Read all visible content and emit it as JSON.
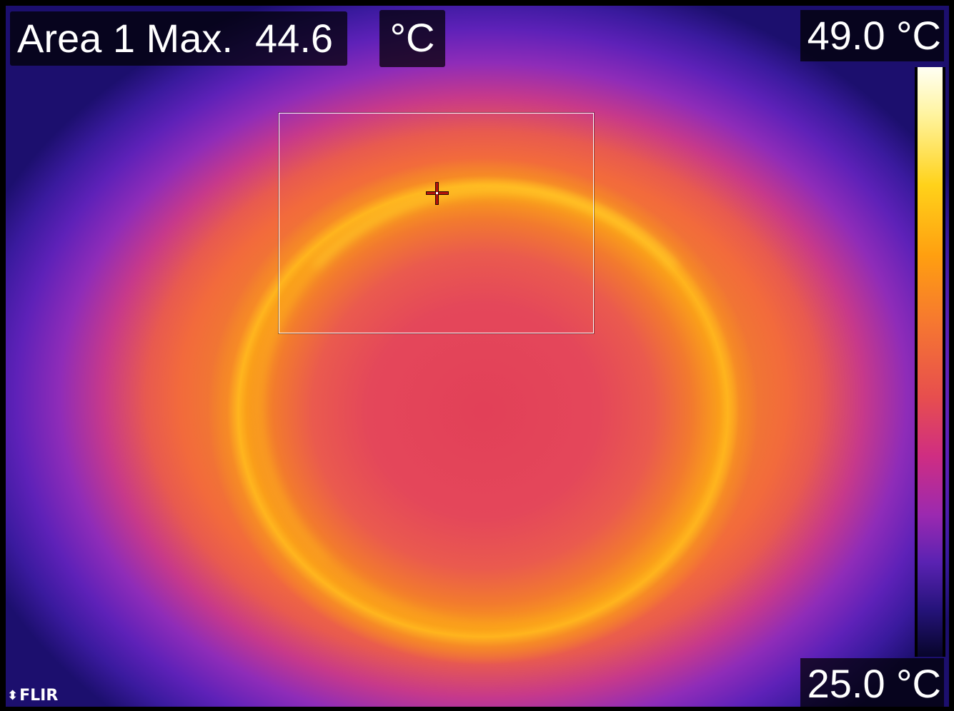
{
  "measurement": {
    "label": "Area 1 Max.",
    "value": "44.6",
    "unit": "°C"
  },
  "temperature_scale": {
    "max_label": "49.0 °C",
    "min_label": "25.0 °C",
    "palette": "iron"
  },
  "branding": {
    "logo_text": "FLIR",
    "logo_icon": "flir-diamond-icon"
  },
  "colors": {
    "overlay_text": "#ffffff",
    "overlay_background": "#000000",
    "hotspot_marker": "#b3120d",
    "measure_box_border": "#ffffff"
  }
}
